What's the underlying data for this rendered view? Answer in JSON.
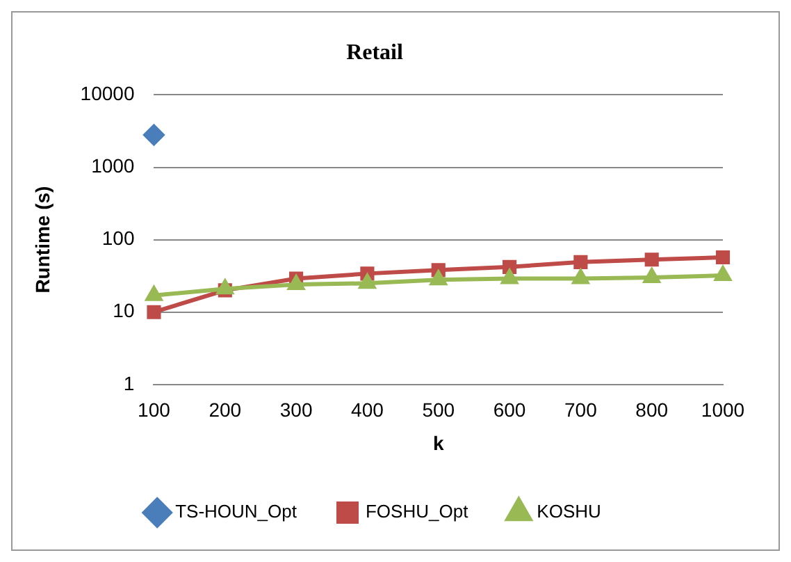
{
  "chart_data": {
    "type": "line",
    "title": "Retail",
    "xlabel": "k",
    "ylabel": "Runtime (s)",
    "categories": [
      "100",
      "200",
      "300",
      "400",
      "500",
      "600",
      "700",
      "800",
      "1000"
    ],
    "series": [
      {
        "name": "TS-HOUN_Opt",
        "color": "#4a7ebb",
        "marker": "diamond",
        "values": [
          2800,
          null,
          null,
          null,
          null,
          null,
          null,
          null,
          null
        ]
      },
      {
        "name": "FOSHU_Opt",
        "color": "#be4b48",
        "marker": "square",
        "values": [
          10,
          20,
          29,
          34,
          38,
          42,
          49,
          53,
          57
        ]
      },
      {
        "name": "KOSHU",
        "color": "#98b954",
        "marker": "triangle",
        "values": [
          17,
          21,
          24,
          25,
          28,
          29,
          29,
          30,
          32
        ]
      }
    ],
    "log": "y",
    "ylim": [
      1,
      10000
    ],
    "yticks": [
      1,
      10,
      100,
      1000,
      10000
    ],
    "grid": "y",
    "legend": "bottom"
  }
}
